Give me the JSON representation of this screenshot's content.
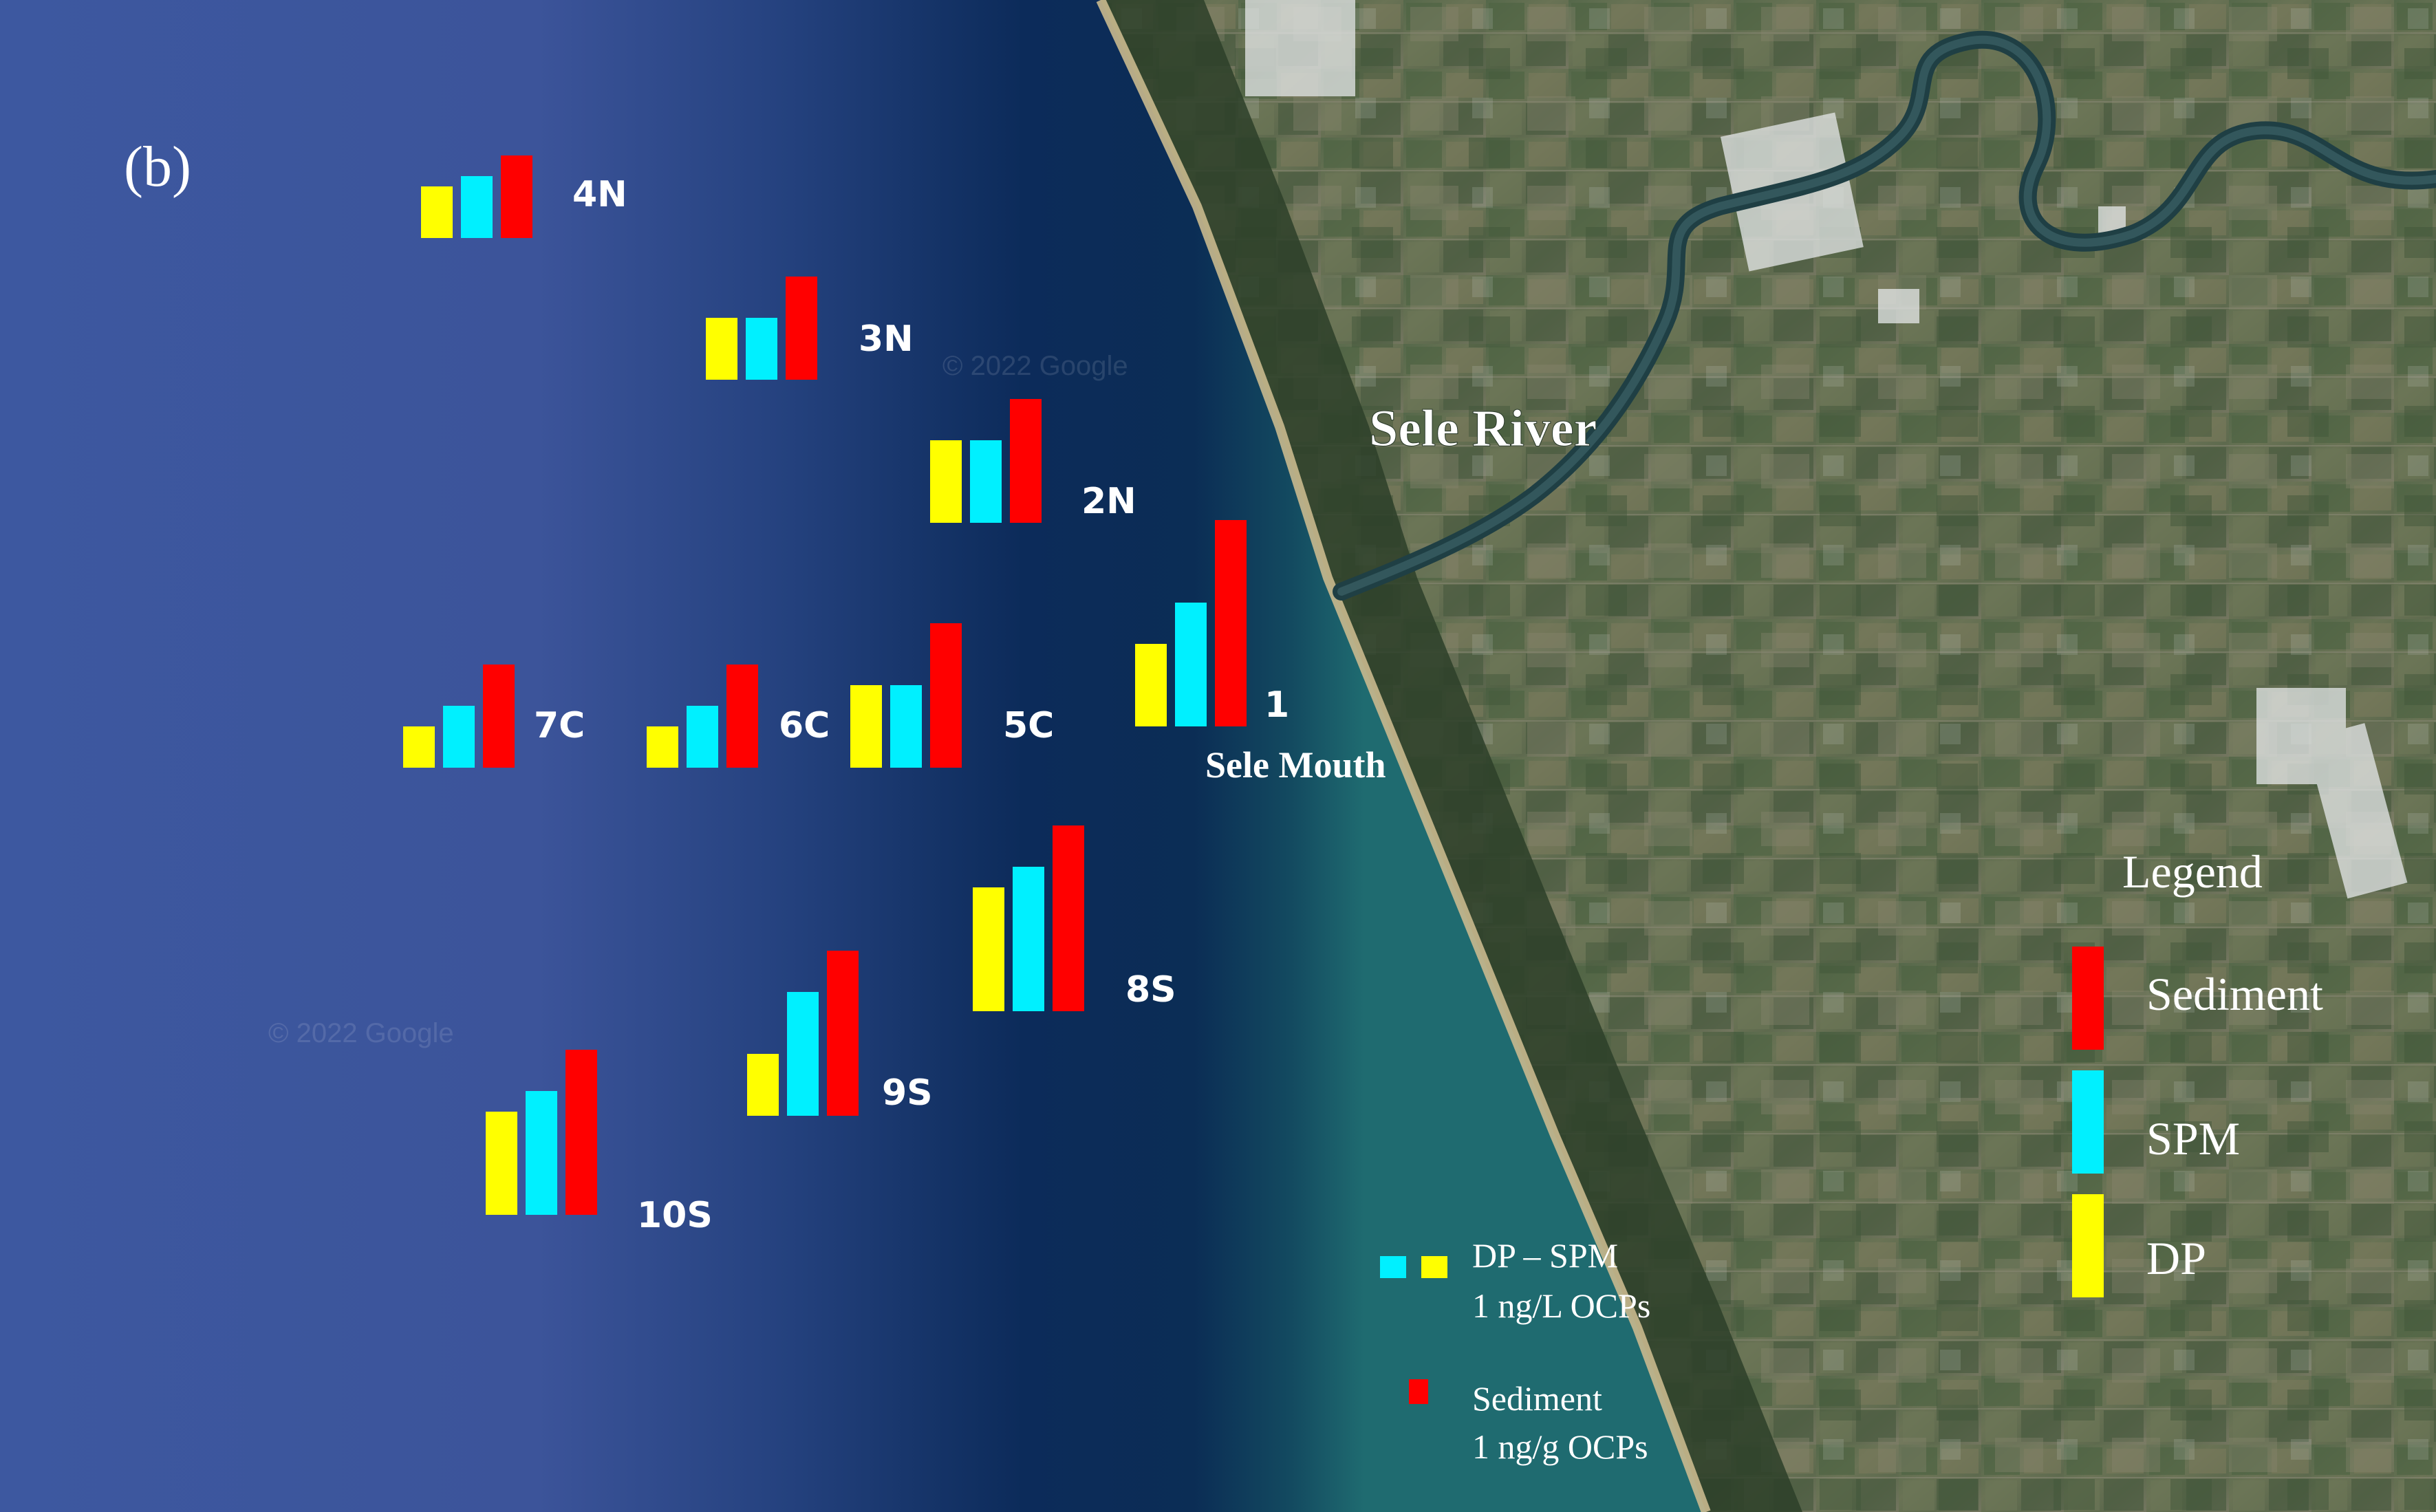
{
  "panel_label": "(b)",
  "river_label": "Sele River",
  "mouth_label": "Sele Mouth",
  "watermarks": [
    "© 2022 Google",
    "© 2022 Google"
  ],
  "colors": {
    "sediment": "#ff0000",
    "spm": "#00f0ff",
    "dp": "#ffff00",
    "sea_deep": "#3c549a",
    "sea_coastal": "#0b2a55",
    "land": "#5a6e4d",
    "text": "#ffffff"
  },
  "stations": [
    {
      "name": "4N",
      "dp": 0.5,
      "spm": 0.6,
      "sediment": 0.8
    },
    {
      "name": "3N",
      "dp": 0.6,
      "spm": 0.6,
      "sediment": 1.0
    },
    {
      "name": "2N",
      "dp": 0.8,
      "spm": 0.8,
      "sediment": 1.2
    },
    {
      "name": "1",
      "dp": 0.8,
      "spm": 1.2,
      "sediment": 2.0
    },
    {
      "name": "5C",
      "dp": 0.8,
      "spm": 0.8,
      "sediment": 1.4
    },
    {
      "name": "6C",
      "dp": 0.4,
      "spm": 0.6,
      "sediment": 1.0
    },
    {
      "name": "7C",
      "dp": 0.4,
      "spm": 0.6,
      "sediment": 1.0
    },
    {
      "name": "8S",
      "dp": 1.2,
      "spm": 1.4,
      "sediment": 1.8
    },
    {
      "name": "9S",
      "dp": 0.6,
      "spm": 1.2,
      "sediment": 1.6
    },
    {
      "name": "10S",
      "dp": 1.0,
      "spm": 1.2,
      "sediment": 1.6
    }
  ],
  "legend": {
    "title": "Legend",
    "items": [
      {
        "label": "Sediment",
        "color": "#ff0000"
      },
      {
        "label": "SPM",
        "color": "#00f0ff"
      },
      {
        "label": "DP",
        "color": "#ffff00"
      }
    ]
  },
  "scale": {
    "water_title": "DP – SPM",
    "water_unit": "1  ng/L OCPs",
    "sediment_title": "Sediment",
    "sediment_unit": "1 ng/g OCPs"
  }
}
